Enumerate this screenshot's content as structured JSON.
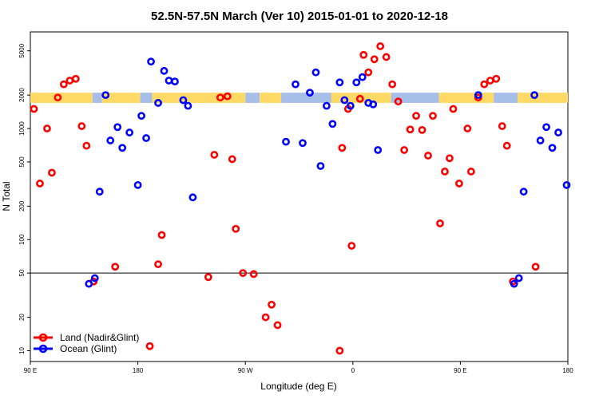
{
  "chart_data": {
    "type": "scatter",
    "title": "52.5N-57.5N March (Ver 10)   2015-01-01 to 2020-12-18",
    "xlabel": "Longitude (deg E)",
    "ylabel": "N Total",
    "x_range": [
      90,
      540
    ],
    "y_range_log": [
      8,
      7400
    ],
    "y_scale": "log",
    "x_ticks": [
      {
        "value": 90,
        "label": "90 E"
      },
      {
        "value": 180,
        "label": "180"
      },
      {
        "value": 270,
        "label": "90 W"
      },
      {
        "value": 360,
        "label": "0"
      },
      {
        "value": 450,
        "label": "90 E"
      },
      {
        "value": 540,
        "label": "180"
      }
    ],
    "y_ticks": [
      10,
      20,
      50,
      100,
      200,
      500,
      1000,
      2000,
      5000
    ],
    "reference_line": 50,
    "band": {
      "y_low": 1700,
      "y_high": 2100,
      "colors": [
        "#FFD966",
        "#A7BFE8"
      ]
    },
    "legend_position": "bottom-left",
    "series": [
      {
        "name": "Land (Nadir&Glint)",
        "color": "#FF0000",
        "points": [
          [
            93,
            1500
          ],
          [
            98,
            320
          ],
          [
            104,
            1000
          ],
          [
            108,
            400
          ],
          [
            113,
            1900
          ],
          [
            118,
            2500
          ],
          [
            123,
            2700
          ],
          [
            128,
            2800
          ],
          [
            133,
            1050
          ],
          [
            137,
            700
          ],
          [
            143,
            42
          ],
          [
            161,
            57
          ],
          [
            190,
            11
          ],
          [
            197,
            60
          ],
          [
            200,
            110
          ],
          [
            239,
            46
          ],
          [
            244,
            580
          ],
          [
            249,
            1900
          ],
          [
            255,
            1950
          ],
          [
            259,
            530
          ],
          [
            262,
            125
          ],
          [
            268,
            50
          ],
          [
            277,
            49
          ],
          [
            287,
            20
          ],
          [
            292,
            26
          ],
          [
            297,
            17
          ],
          [
            349,
            10
          ],
          [
            351,
            670
          ],
          [
            356,
            1500
          ],
          [
            359,
            88
          ],
          [
            366,
            1850
          ],
          [
            369,
            4600
          ],
          [
            373,
            3200
          ],
          [
            378,
            4200
          ],
          [
            383,
            5500
          ],
          [
            388,
            4400
          ],
          [
            393,
            2500
          ],
          [
            398,
            1750
          ],
          [
            403,
            640
          ],
          [
            408,
            980
          ],
          [
            413,
            1300
          ],
          [
            418,
            970
          ],
          [
            423,
            570
          ],
          [
            427,
            1300
          ],
          [
            433,
            140
          ],
          [
            437,
            410
          ],
          [
            441,
            540
          ],
          [
            444,
            1500
          ],
          [
            449,
            320
          ],
          [
            456,
            1000
          ],
          [
            459,
            410
          ],
          [
            465,
            1900
          ],
          [
            470,
            2500
          ],
          [
            475,
            2700
          ],
          [
            480,
            2800
          ],
          [
            485,
            1050
          ],
          [
            489,
            700
          ],
          [
            494,
            42
          ],
          [
            513,
            57
          ]
        ]
      },
      {
        "name": "Ocean (Glint)",
        "color": "#0000FF",
        "points": [
          [
            139,
            40
          ],
          [
            144,
            45
          ],
          [
            148,
            270
          ],
          [
            153,
            2000
          ],
          [
            157,
            780
          ],
          [
            163,
            1030
          ],
          [
            167,
            670
          ],
          [
            173,
            920
          ],
          [
            180,
            310
          ],
          [
            183,
            1300
          ],
          [
            187,
            820
          ],
          [
            191,
            4000
          ],
          [
            197,
            1700
          ],
          [
            202,
            3300
          ],
          [
            206,
            2700
          ],
          [
            211,
            2650
          ],
          [
            218,
            1800
          ],
          [
            222,
            1600
          ],
          [
            226,
            240
          ],
          [
            304,
            760
          ],
          [
            312,
            2500
          ],
          [
            318,
            740
          ],
          [
            324,
            2100
          ],
          [
            329,
            3200
          ],
          [
            333,
            460
          ],
          [
            338,
            1600
          ],
          [
            343,
            1100
          ],
          [
            349,
            2600
          ],
          [
            353,
            1800
          ],
          [
            358,
            1600
          ],
          [
            363,
            2600
          ],
          [
            368,
            2900
          ],
          [
            373,
            1700
          ],
          [
            377,
            1650
          ],
          [
            381,
            640
          ],
          [
            465,
            2000
          ],
          [
            495,
            40
          ],
          [
            499,
            45
          ],
          [
            503,
            270
          ],
          [
            512,
            2000
          ],
          [
            517,
            780
          ],
          [
            522,
            1030
          ],
          [
            527,
            670
          ],
          [
            532,
            920
          ],
          [
            539,
            310
          ]
        ]
      }
    ]
  }
}
